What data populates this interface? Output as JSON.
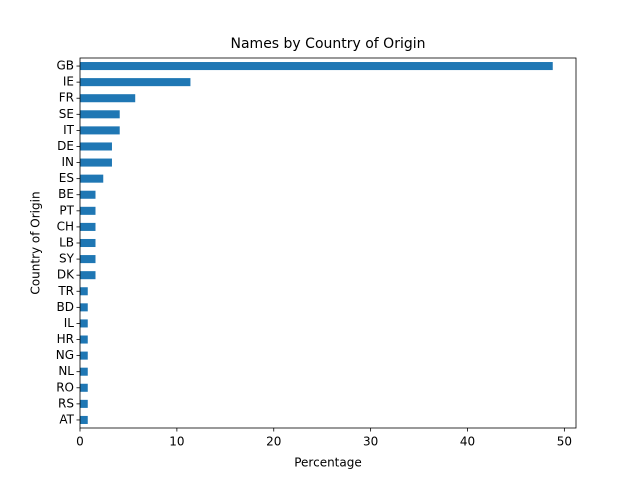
{
  "chart_data": {
    "type": "barh",
    "title": "Names by Country of Origin",
    "xlabel": "Percentage",
    "ylabel": "Country of Origin",
    "categories": [
      "GB",
      "IE",
      "FR",
      "SE",
      "IT",
      "DE",
      "IN",
      "ES",
      "BE",
      "PT",
      "CH",
      "LB",
      "SY",
      "DK",
      "TR",
      "BD",
      "IL",
      "HR",
      "NG",
      "NL",
      "RO",
      "RS",
      "AT"
    ],
    "values": [
      48.8,
      11.4,
      5.7,
      4.1,
      4.1,
      3.3,
      3.3,
      2.4,
      1.6,
      1.6,
      1.6,
      1.6,
      1.6,
      1.6,
      0.8,
      0.8,
      0.8,
      0.8,
      0.8,
      0.8,
      0.8,
      0.8,
      0.8
    ],
    "color": "#1f77b4",
    "xlim": [
      0,
      51.2
    ],
    "xticks": [
      0,
      10,
      20,
      30,
      40,
      50
    ]
  }
}
